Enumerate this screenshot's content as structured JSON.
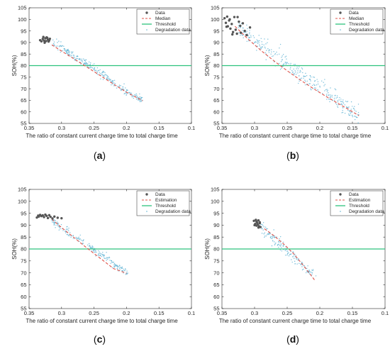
{
  "chart_data": [
    {
      "id": "a",
      "type": "scatter",
      "panel_label": {
        "open": "(",
        "letter": "a",
        "close": ")"
      },
      "xlabel": "The ratio of constant current charge time to total charge time",
      "ylabel": "SOH(%)",
      "xlim": [
        0.35,
        0.1
      ],
      "ylim": [
        55,
        105
      ],
      "x_ticks": [
        "0.35",
        "0.3",
        "0.25",
        "0.2",
        "0.15",
        "0.1"
      ],
      "y_ticks": [
        "55",
        "60",
        "65",
        "70",
        "75",
        "80",
        "85",
        "90",
        "95",
        "100",
        "105"
      ],
      "grid": false,
      "legend": {
        "position": "top-right",
        "entries": [
          "Data",
          "Median",
          "Threshold",
          "Degradation data"
        ]
      },
      "series": [
        {
          "name": "Data",
          "role": "data",
          "color": "#555555",
          "x": [
            0.333,
            0.331,
            0.329,
            0.327,
            0.325,
            0.324,
            0.322,
            0.321,
            0.319,
            0.318,
            0.328,
            0.326,
            0.323,
            0.32
          ],
          "y": [
            91.0,
            90.5,
            91.5,
            90.8,
            91.8,
            90.6,
            92.0,
            91.2,
            90.9,
            91.6,
            92.4,
            89.9,
            92.2,
            90.4
          ]
        },
        {
          "name": "Median",
          "role": "line",
          "color": "#e0534a",
          "x": [
            0.315,
            0.3,
            0.28,
            0.26,
            0.24,
            0.22,
            0.2,
            0.175
          ],
          "y": [
            89.0,
            86.3,
            82.8,
            79.2,
            75.6,
            72.0,
            68.5,
            64.8
          ]
        },
        {
          "name": "Threshold",
          "role": "hline",
          "color": "#2ec27e",
          "y": 80
        },
        {
          "name": "Degradation data",
          "role": "scatter",
          "color": "#5fb3d4",
          "x_start": 0.315,
          "x_end": 0.175,
          "y_start": 90.5,
          "y_end": 64.5,
          "spread": 1.6,
          "count": 260
        }
      ]
    },
    {
      "id": "b",
      "type": "scatter",
      "panel_label": {
        "open": "(",
        "letter": "b",
        "close": ")"
      },
      "xlabel": "The ratio of constant current charge time to total charge time",
      "ylabel": "SOH(%)",
      "xlim": [
        0.35,
        0.1
      ],
      "ylim": [
        55,
        105
      ],
      "x_ticks": [
        "0.35",
        "0.3",
        "0.25",
        "0.2",
        "0.15",
        "0.1"
      ],
      "y_ticks": [
        "55",
        "60",
        "65",
        "70",
        "75",
        "80",
        "85",
        "90",
        "95",
        "100",
        "105"
      ],
      "grid": false,
      "legend": {
        "position": "top-right",
        "entries": [
          "Data",
          "Median",
          "Threshold",
          "Degradation data"
        ]
      },
      "series": [
        {
          "name": "Data",
          "role": "data",
          "color": "#555555",
          "x": [
            0.346,
            0.344,
            0.342,
            0.341,
            0.339,
            0.337,
            0.335,
            0.333,
            0.331,
            0.329,
            0.327,
            0.324,
            0.321,
            0.318,
            0.315,
            0.312,
            0.307,
            0.343,
            0.338,
            0.334,
            0.326,
            0.322
          ],
          "y": [
            100.5,
            98.5,
            101.2,
            97.0,
            99.5,
            96.0,
            98.0,
            94.5,
            101.0,
            95.5,
            93.8,
            99.0,
            94.2,
            98.3,
            95.0,
            93.2,
            96.5,
            96.8,
            100.0,
            93.5,
            101.0,
            97.2
          ]
        },
        {
          "name": "Median",
          "role": "line",
          "color": "#e0534a",
          "x": [
            0.33,
            0.31,
            0.29,
            0.27,
            0.25,
            0.23,
            0.21,
            0.19,
            0.17,
            0.15,
            0.14
          ],
          "y": [
            97.0,
            91.5,
            86.5,
            82.0,
            77.8,
            73.8,
            70.1,
            66.6,
            63.3,
            60.1,
            58.3
          ]
        },
        {
          "name": "Threshold",
          "role": "hline",
          "color": "#2ec27e",
          "y": 80
        },
        {
          "name": "Degradation data",
          "role": "scatter",
          "color": "#5fb3d4",
          "x_start": 0.325,
          "x_end": 0.14,
          "y_start": 96.0,
          "y_end": 58.0,
          "spread": 3.2,
          "count": 320
        }
      ]
    },
    {
      "id": "c",
      "type": "scatter",
      "panel_label": {
        "open": "(",
        "letter": "c",
        "close": ")"
      },
      "xlabel": "The ratio of constant current charge time to total charge time",
      "ylabel": "SOH(%)",
      "xlim": [
        0.35,
        0.1
      ],
      "ylim": [
        55,
        105
      ],
      "x_ticks": [
        "0.35",
        "0.3",
        "0.25",
        "0.2",
        "0.15",
        "0.1"
      ],
      "y_ticks": [
        "55",
        "60",
        "65",
        "70",
        "75",
        "80",
        "85",
        "90",
        "95",
        "100",
        "105"
      ],
      "grid": false,
      "legend": {
        "position": "top-right",
        "entries": [
          "Data",
          "Estimation",
          "Threshold",
          "Degradation data"
        ]
      },
      "series": [
        {
          "name": "Data",
          "role": "data",
          "color": "#555555",
          "x": [
            0.338,
            0.336,
            0.335,
            0.333,
            0.331,
            0.329,
            0.327,
            0.325,
            0.323,
            0.321,
            0.319,
            0.317,
            0.314,
            0.311,
            0.306,
            0.3
          ],
          "y": [
            93.2,
            94.0,
            93.6,
            94.3,
            93.8,
            94.1,
            93.4,
            94.4,
            93.9,
            93.0,
            94.2,
            93.5,
            92.8,
            93.6,
            93.1,
            92.9
          ]
        },
        {
          "name": "Estimation",
          "role": "line",
          "color": "#e0534a",
          "x": [
            0.315,
            0.3,
            0.28,
            0.26,
            0.24,
            0.22,
            0.2
          ],
          "y": [
            92.5,
            89.0,
            84.6,
            80.2,
            76.0,
            71.8,
            69.8
          ]
        },
        {
          "name": "Threshold",
          "role": "hline",
          "color": "#2ec27e",
          "y": 80
        },
        {
          "name": "Degradation data",
          "role": "scatter",
          "color": "#5fb3d4",
          "x_start": 0.315,
          "x_end": 0.198,
          "y_start": 92.0,
          "y_end": 70.0,
          "spread": 1.6,
          "count": 200
        }
      ]
    },
    {
      "id": "d",
      "type": "scatter",
      "panel_label": {
        "open": "(",
        "letter": "d",
        "close": ")"
      },
      "xlabel": "The ratio of constant current charge time to total charge time",
      "ylabel": "SOH(%)",
      "xlim": [
        0.35,
        0.1
      ],
      "ylim": [
        55,
        105
      ],
      "x_ticks": [
        "0.35",
        "0.3",
        "0.25",
        "0.2",
        "0.15",
        "0.1"
      ],
      "y_ticks": [
        "55",
        "60",
        "65",
        "70",
        "75",
        "80",
        "85",
        "90",
        "95",
        "100",
        "105"
      ],
      "grid": false,
      "legend": {
        "position": "top-right",
        "entries": [
          "Data",
          "Estimation",
          "Threshold",
          "Degradation data"
        ]
      },
      "series": [
        {
          "name": "Data",
          "role": "data",
          "color": "#555555",
          "x": [
            0.301,
            0.299,
            0.298,
            0.297,
            0.296,
            0.295,
            0.294,
            0.293,
            0.292,
            0.291,
            0.3,
            0.297,
            0.294,
            0.292
          ],
          "y": [
            91.8,
            90.5,
            92.2,
            89.8,
            91.0,
            90.2,
            92.0,
            89.5,
            90.8,
            89.2,
            90.0,
            91.5,
            89.0,
            91.2
          ]
        },
        {
          "name": "Estimation",
          "role": "line",
          "color": "#e0534a",
          "x": [
            0.285,
            0.27,
            0.255,
            0.24,
            0.225,
            0.215,
            0.208
          ],
          "y": [
            88.5,
            85.5,
            82.0,
            78.0,
            73.0,
            69.5,
            67.0
          ]
        },
        {
          "name": "Threshold",
          "role": "hline",
          "color": "#2ec27e",
          "y": 80
        },
        {
          "name": "Degradation data",
          "role": "scatter",
          "color": "#5fb3d4",
          "x_start": 0.29,
          "x_end": 0.205,
          "y_start": 89.0,
          "y_end": 68.0,
          "spread": 2.4,
          "count": 150
        }
      ]
    }
  ]
}
